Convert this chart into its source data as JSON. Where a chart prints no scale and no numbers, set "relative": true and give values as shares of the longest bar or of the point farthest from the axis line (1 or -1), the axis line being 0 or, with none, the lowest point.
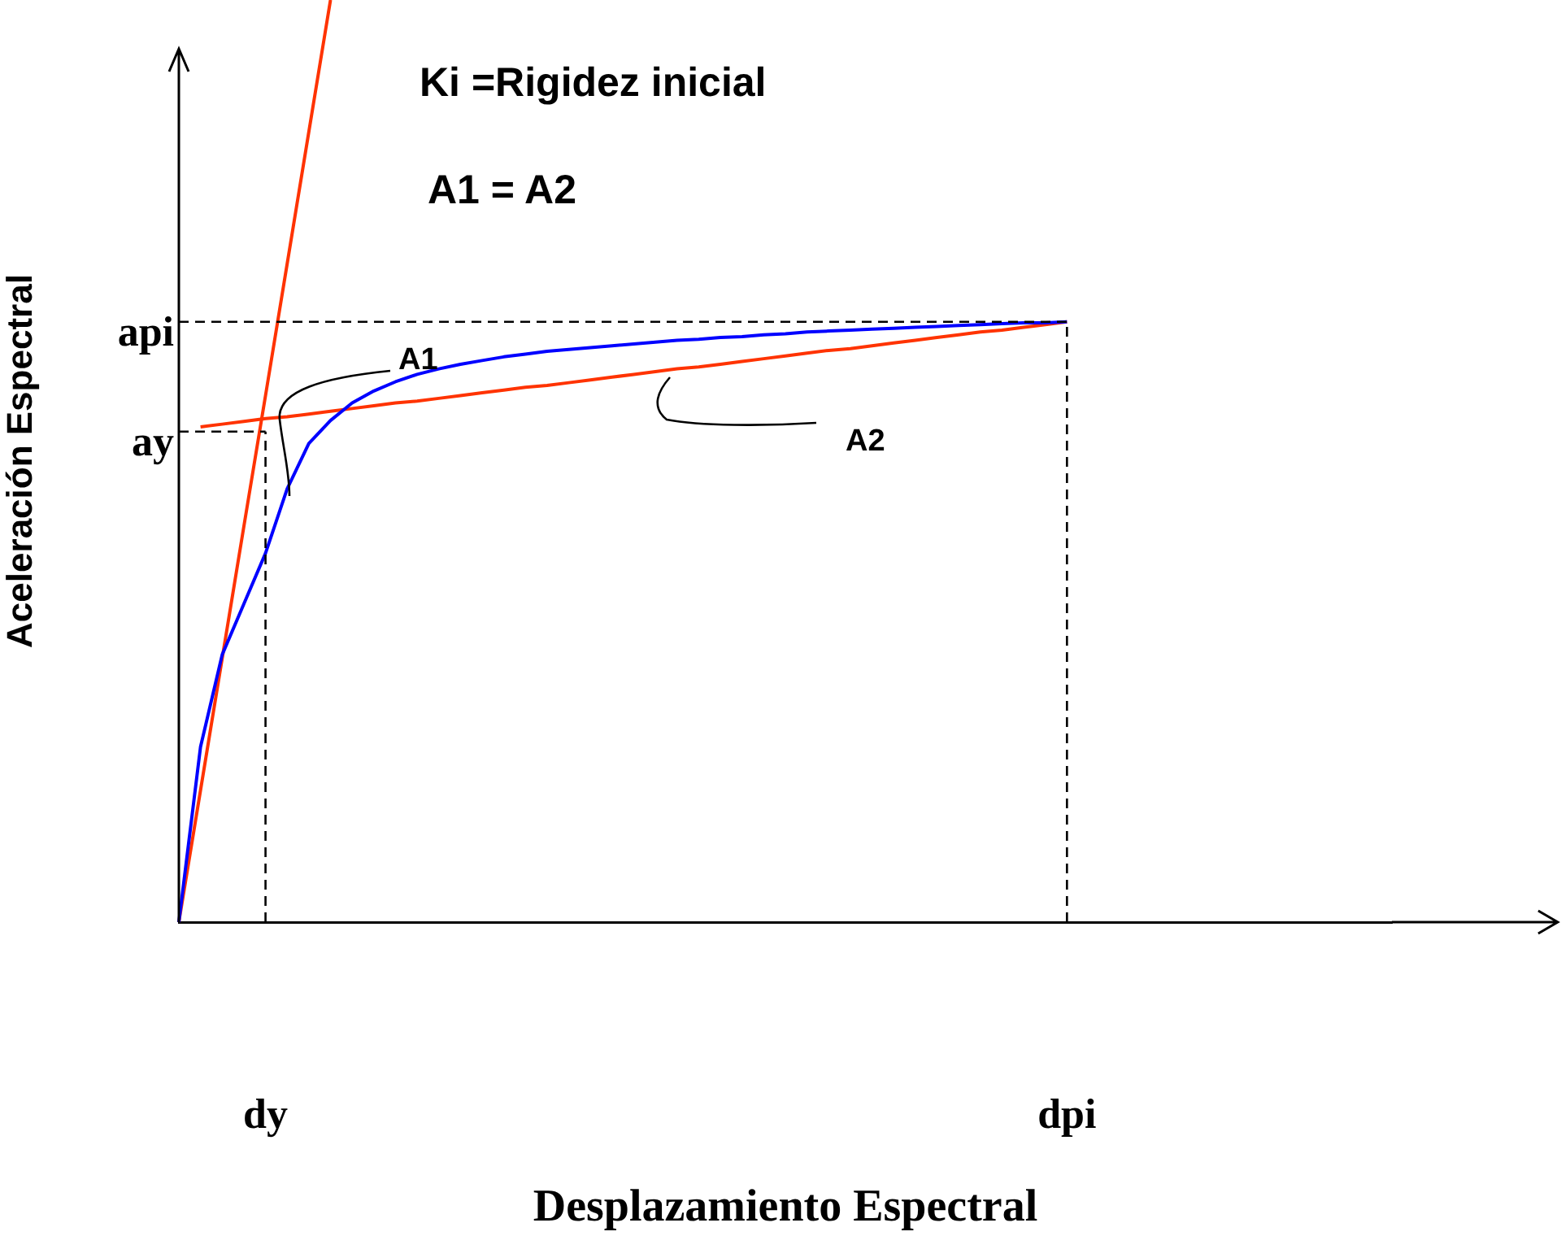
{
  "chart_data": {
    "type": "line",
    "relative": true,
    "legend": false,
    "marker": "none",
    "xlabel": "Desplazamiento Espectral",
    "ylabel": "Aceleración Espectral",
    "categories": [
      null,
      null,
      null,
      null,
      "dy",
      null,
      null,
      null,
      null,
      null,
      null,
      null,
      null,
      null,
      null,
      null,
      null,
      null,
      null,
      null,
      null,
      null,
      null,
      null,
      null,
      null,
      null,
      null,
      null,
      null,
      null,
      null,
      null,
      null,
      null,
      null,
      null,
      null,
      null,
      null,
      null,
      "dpi",
      null,
      null,
      null,
      null,
      null,
      null,
      null,
      null,
      null,
      null,
      null,
      null,
      null,
      null,
      null
    ],
    "series": [
      {
        "color": "#0000ff",
        "values": [
          0,
          0.19,
          0.29,
          0.345,
          0.4,
          0.47,
          0.519,
          0.544,
          0.563,
          0.576,
          0.586,
          0.594,
          0.6,
          0.605,
          0.609,
          0.613,
          0.616,
          0.619,
          0.621,
          0.623,
          0.625,
          0.627,
          0.629,
          0.631,
          0.632,
          0.634,
          0.635,
          0.637,
          0.638,
          0.64,
          0.641,
          0.642,
          0.643,
          0.644,
          0.645,
          0.646,
          0.647,
          0.648,
          0.649,
          0.65,
          0.65,
          0.651,
          null,
          null,
          null,
          null,
          null,
          null,
          null,
          null,
          null,
          null,
          null,
          null,
          null,
          null,
          null
        ]
      },
      {
        "color": "#ff3300",
        "values": [
          0,
          0.143,
          0.286,
          0.429,
          0.571,
          0.714,
          0.857,
          1,
          null,
          null,
          null,
          null,
          null,
          null,
          null,
          null,
          null,
          null,
          null,
          null,
          null,
          null,
          null,
          null,
          null,
          null,
          null,
          null,
          null,
          null,
          null,
          null,
          null,
          null,
          null,
          null,
          null,
          null,
          null,
          null,
          null,
          null,
          null,
          null,
          null,
          null,
          null,
          null,
          null,
          null,
          null,
          null,
          null,
          null,
          null,
          null,
          null
        ]
      },
      {
        "color": "#ff3300",
        "values": [
          null,
          0.537,
          0.54,
          0.543,
          0.546,
          0.548,
          0.551,
          0.554,
          0.557,
          0.56,
          0.563,
          0.565,
          0.568,
          0.571,
          0.574,
          0.577,
          0.58,
          0.582,
          0.585,
          0.588,
          0.591,
          0.594,
          0.597,
          0.6,
          0.602,
          0.605,
          0.608,
          0.611,
          0.614,
          0.617,
          0.62,
          0.622,
          0.625,
          0.628,
          0.631,
          0.634,
          0.637,
          0.64,
          0.642,
          0.645,
          0.648,
          0.651,
          null,
          null,
          null,
          null,
          null,
          null,
          null,
          null,
          null,
          null,
          null,
          null,
          null,
          null,
          null
        ]
      }
    ],
    "ref_lines": [
      {
        "axis": "y",
        "value": 0.651,
        "label": "api",
        "line_style": "dashed"
      },
      {
        "axis": "y",
        "value": 0.532,
        "label": "ay",
        "line_style": "dashed"
      },
      {
        "axis": "x",
        "value": "dpi",
        "line_style": "dashed"
      },
      {
        "axis": "x",
        "value": "dy",
        "line_style": "dashed"
      }
    ],
    "annotations": [
      "Ki =Rigidez inicial",
      "A1 = A2",
      "A1",
      "A2"
    ]
  }
}
